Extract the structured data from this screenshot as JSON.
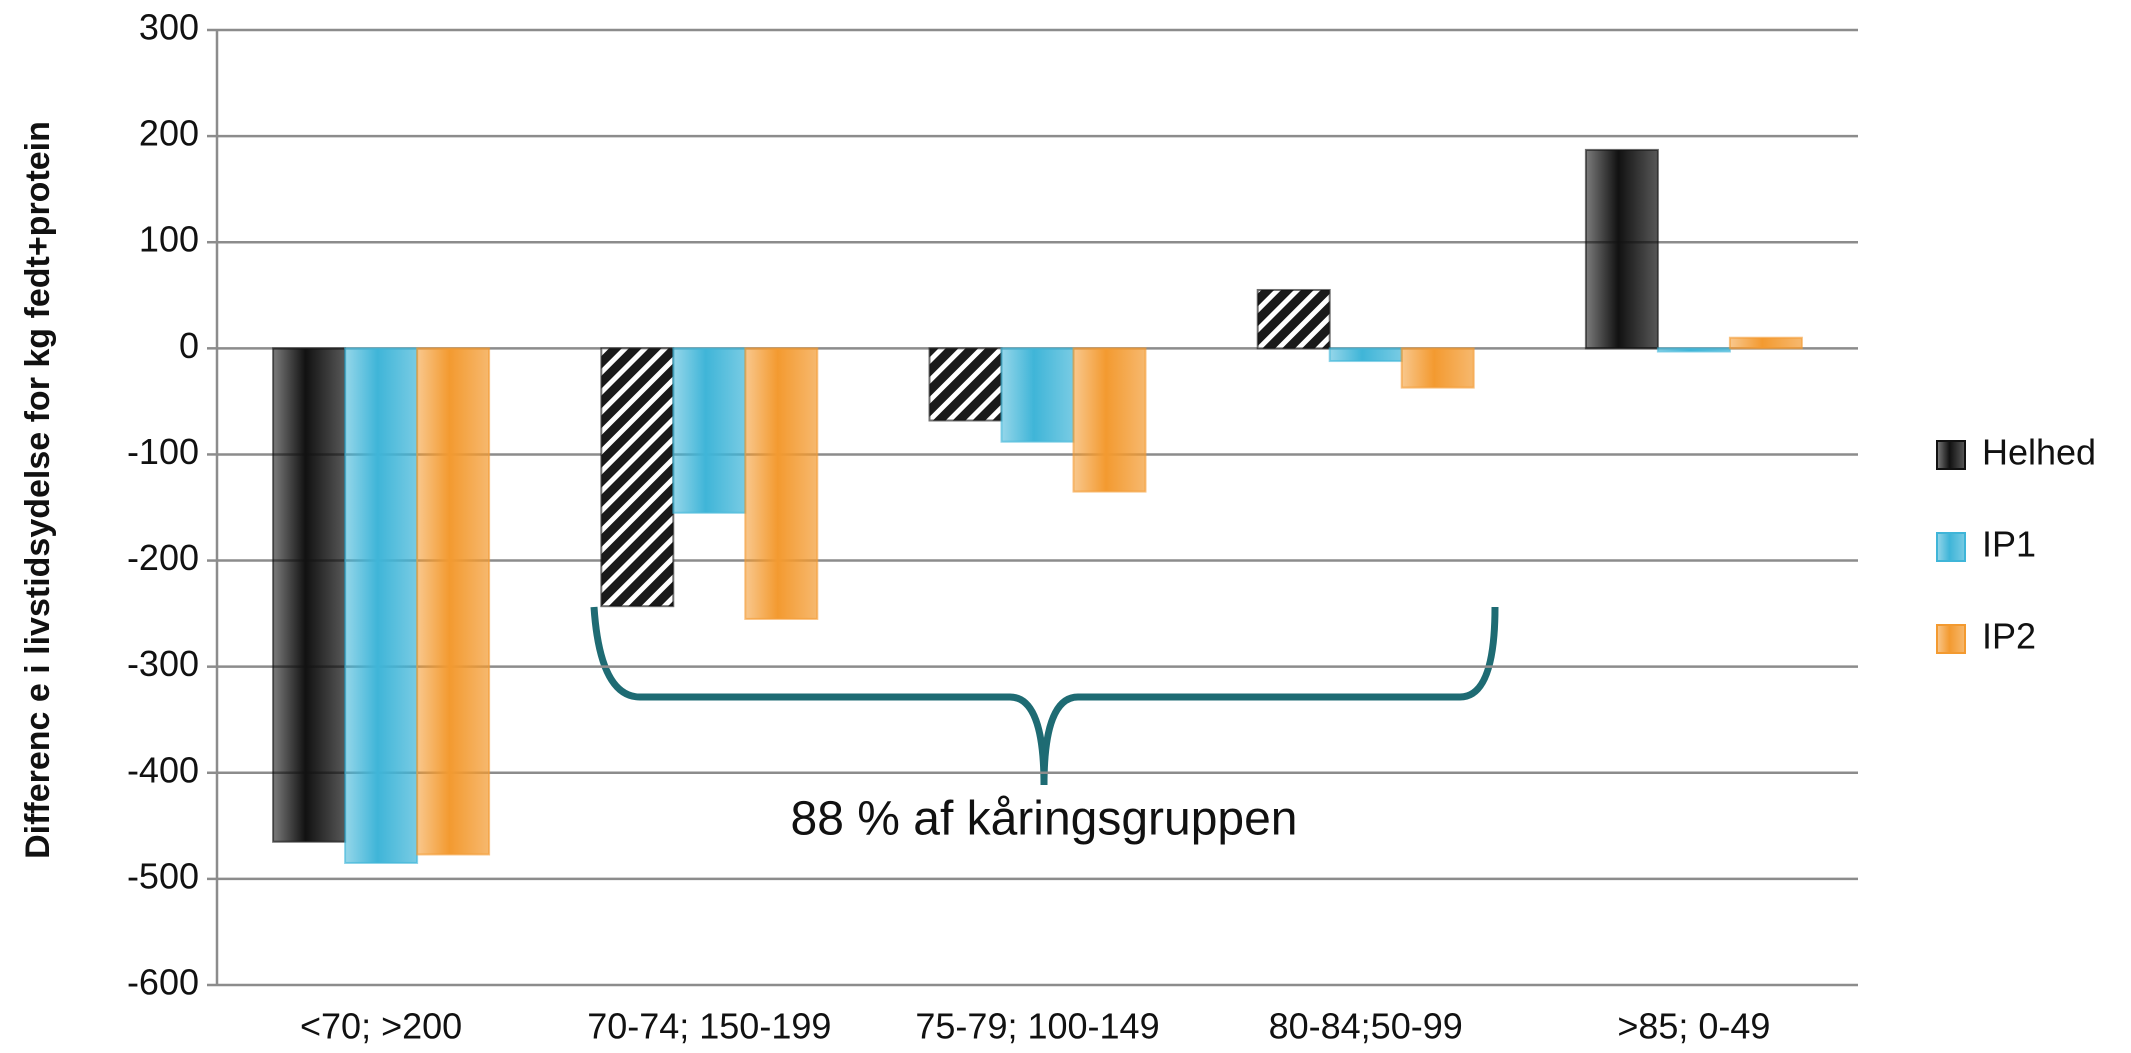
{
  "chart_data": {
    "type": "bar",
    "ylabel": "Differenc e i livstidsydelse for kg fedt+protein",
    "categories": [
      "<70; >200",
      "70-74; 150-199",
      "75-79; 100-149",
      "80-84;50-99",
      ">85; 0-49"
    ],
    "series": [
      {
        "name": "Helhed",
        "color": "#111111",
        "values": [
          -465,
          -243,
          -68,
          55,
          187
        ],
        "hatched": [
          false,
          true,
          true,
          true,
          false
        ]
      },
      {
        "name": "IP1",
        "color": "#3fb5d8",
        "values": [
          -485,
          -155,
          -88,
          -12,
          -3
        ]
      },
      {
        "name": "IP2",
        "color": "#f39a30",
        "values": [
          -477,
          -255,
          -135,
          -37,
          10
        ]
      }
    ],
    "ylim": [
      -600,
      300
    ],
    "yticks": [
      -600,
      -500,
      -400,
      -300,
      -200,
      -100,
      0,
      100,
      200,
      300
    ],
    "grid": true,
    "legend": "right",
    "annotation": "88 % af kåringsgruppen"
  }
}
